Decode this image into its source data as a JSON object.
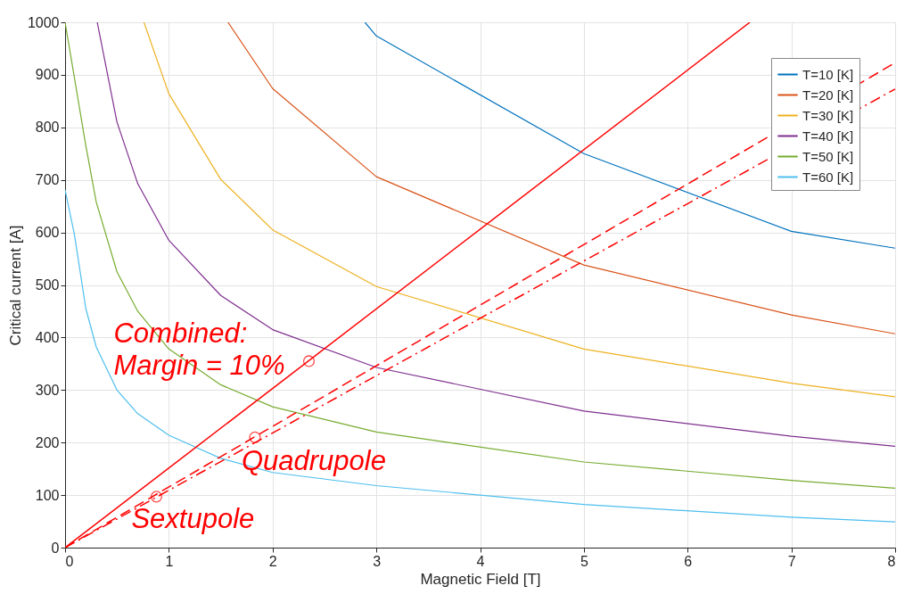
{
  "chart_data": {
    "type": "line",
    "xlabel": "Magnetic Field [T]",
    "ylabel": "Critical current [A]",
    "xlim": [
      0,
      8
    ],
    "ylim": [
      0,
      1000
    ],
    "xticks": [
      0,
      1,
      2,
      3,
      4,
      5,
      6,
      7,
      8
    ],
    "yticks": [
      0,
      100,
      200,
      300,
      400,
      500,
      600,
      700,
      800,
      900,
      1000
    ],
    "grid": true,
    "legend": "top right",
    "series": [
      {
        "name": "T=10 [K]",
        "color": "#0072bd",
        "x": [
          2.89,
          3,
          5,
          7,
          8
        ],
        "values": [
          1000,
          974,
          750,
          602,
          570
        ]
      },
      {
        "name": "T=20 [K]",
        "color": "#d95319",
        "x": [
          1.57,
          2,
          3,
          5,
          7,
          8
        ],
        "values": [
          1000,
          874,
          706,
          538,
          443,
          407
        ]
      },
      {
        "name": "T=30 [K]",
        "color": "#edb120",
        "x": [
          0.76,
          1,
          1.5,
          2,
          3,
          5,
          7,
          8
        ],
        "values": [
          1000,
          864,
          701,
          605,
          497,
          378,
          313,
          287
        ]
      },
      {
        "name": "T=40 [K]",
        "color": "#7e2f8e",
        "x": [
          0.31,
          0.5,
          0.7,
          1,
          1.5,
          2,
          3,
          5,
          7,
          8
        ],
        "values": [
          1000,
          810,
          693,
          585,
          480,
          415,
          343,
          260,
          212,
          193
        ]
      },
      {
        "name": "T=50 [K]",
        "color": "#77ac30",
        "x": [
          0,
          0.2,
          0.3,
          0.5,
          0.7,
          1,
          1.5,
          2,
          3,
          5,
          7,
          8
        ],
        "values": [
          1000,
          765,
          658,
          525,
          450,
          378,
          310,
          268,
          220,
          163,
          128,
          113
        ]
      },
      {
        "name": "T=60 [K]",
        "color": "#4dbeee",
        "x": [
          0,
          0.09,
          0.2,
          0.3,
          0.5,
          0.7,
          1,
          1.5,
          2,
          3,
          5,
          7,
          8
        ],
        "values": [
          681,
          596,
          455,
          382,
          300,
          255,
          214,
          170,
          143,
          118,
          82,
          58,
          49
        ]
      },
      {
        "color": "#ff0000",
        "line_style": "solid",
        "x": [
          0,
          6.6
        ],
        "values": [
          0,
          1000
        ]
      },
      {
        "color": "#ff0000",
        "line_style": "dashed",
        "x": [
          0,
          8
        ],
        "values": [
          0,
          923
        ]
      },
      {
        "color": "#ff0000",
        "line_style": "dashdot",
        "x": [
          0,
          8
        ],
        "values": [
          0,
          873
        ]
      },
      {
        "type": "scatter",
        "marker": "circle",
        "color": "#ff0000",
        "x": [
          2.35,
          1.83,
          0.88
        ],
        "values": [
          355,
          210,
          97
        ]
      }
    ],
    "annotations": [
      {
        "text": "Combined:\nMargin = 10%",
        "x": 2.35,
        "y": 355
      },
      {
        "text": "Quadrupole",
        "x": 1.83,
        "y": 210
      },
      {
        "text": "Sextupole",
        "x": 0.88,
        "y": 97
      }
    ]
  }
}
